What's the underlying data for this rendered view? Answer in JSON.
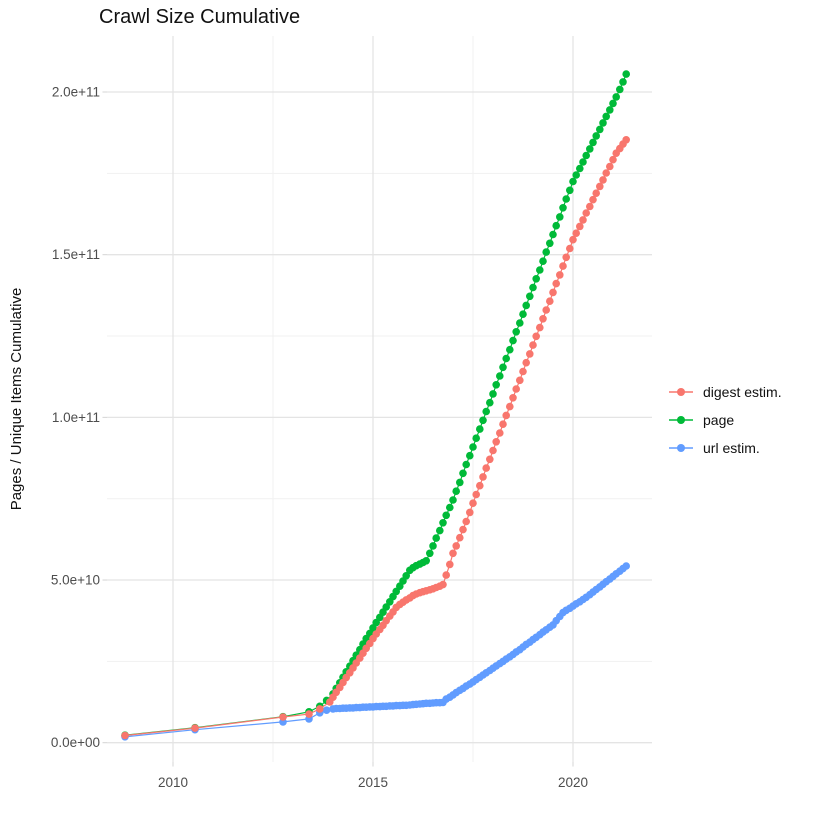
{
  "title": "Crawl Size Cumulative",
  "y_axis_title": "Pages / Unique Items Cumulative",
  "chart_data": {
    "type": "scatter",
    "title": "Crawl Size Cumulative",
    "xlabel": "",
    "ylabel": "Pages / Unique Items Cumulative",
    "legend_position": "right",
    "grid": "on",
    "values_unit": "billions (1e9)",
    "xlim": [
      2008.3,
      2022.0
    ],
    "ylim_billions": [
      0,
      217
    ],
    "x_ticks": [
      {
        "value": 2010,
        "label": "2010"
      },
      {
        "value": 2015,
        "label": "2015"
      },
      {
        "value": 2020,
        "label": "2020"
      }
    ],
    "x_minor_ticks": [
      2012.5,
      2017.5
    ],
    "y_ticks": [
      {
        "value": 0,
        "label": "0.0e+00"
      },
      {
        "value": 50,
        "label": "5.0e+10"
      },
      {
        "value": 100,
        "label": "1.0e+11"
      },
      {
        "value": 150,
        "label": "1.5e+11"
      },
      {
        "value": 200,
        "label": "2.0e+11"
      }
    ],
    "y_minor_ticks": [
      25,
      75,
      125,
      175
    ],
    "series": [
      {
        "name": "digest estim.",
        "key": "digest-estim",
        "color": "#F8766D",
        "points": [
          [
            2008.8,
            2.2
          ],
          [
            2010.55,
            4.5
          ],
          [
            2012.75,
            7.9
          ],
          [
            2013.4,
            8.8
          ],
          [
            2013.67,
            10.4
          ],
          [
            2013.92,
            12.5
          ],
          [
            2014.0,
            14.0
          ],
          [
            2014.08,
            15.5
          ],
          [
            2014.17,
            17.0
          ],
          [
            2014.25,
            18.5
          ],
          [
            2014.33,
            20.0
          ],
          [
            2014.42,
            21.5
          ],
          [
            2014.5,
            23.0
          ],
          [
            2014.58,
            24.5
          ],
          [
            2014.67,
            26.0
          ],
          [
            2014.75,
            27.5
          ],
          [
            2014.83,
            29.0
          ],
          [
            2014.92,
            30.5
          ],
          [
            2015.0,
            32.0
          ],
          [
            2015.08,
            33.4
          ],
          [
            2015.17,
            34.8
          ],
          [
            2015.25,
            36.1
          ],
          [
            2015.33,
            37.5
          ],
          [
            2015.42,
            38.9
          ],
          [
            2015.5,
            40.2
          ],
          [
            2015.58,
            41.6
          ],
          [
            2015.67,
            42.5
          ],
          [
            2015.75,
            43.2
          ],
          [
            2015.83,
            43.9
          ],
          [
            2015.92,
            44.5
          ],
          [
            2016.0,
            45.2
          ],
          [
            2016.08,
            45.7
          ],
          [
            2016.17,
            46.1
          ],
          [
            2016.25,
            46.4
          ],
          [
            2016.33,
            46.7
          ],
          [
            2016.42,
            47.0
          ],
          [
            2016.5,
            47.3
          ],
          [
            2016.58,
            47.7
          ],
          [
            2016.67,
            48.1
          ],
          [
            2016.75,
            48.6
          ],
          [
            2016.83,
            51.5
          ],
          [
            2016.92,
            54.8
          ],
          [
            2017.0,
            58.2
          ],
          [
            2017.08,
            60.5
          ],
          [
            2017.17,
            63.0
          ],
          [
            2017.25,
            65.5
          ],
          [
            2017.33,
            68.0
          ],
          [
            2017.42,
            70.8
          ],
          [
            2017.5,
            73.6
          ],
          [
            2017.58,
            76.3
          ],
          [
            2017.67,
            79.0
          ],
          [
            2017.75,
            81.7
          ],
          [
            2017.83,
            84.4
          ],
          [
            2017.92,
            87.1
          ],
          [
            2018.0,
            89.8
          ],
          [
            2018.08,
            92.5
          ],
          [
            2018.17,
            95.2
          ],
          [
            2018.25,
            97.9
          ],
          [
            2018.33,
            100.6
          ],
          [
            2018.42,
            103.3
          ],
          [
            2018.5,
            106.0
          ],
          [
            2018.58,
            108.7
          ],
          [
            2018.67,
            111.4
          ],
          [
            2018.75,
            114.1
          ],
          [
            2018.83,
            116.8
          ],
          [
            2018.92,
            119.5
          ],
          [
            2019.0,
            122.2
          ],
          [
            2019.08,
            124.9
          ],
          [
            2019.17,
            127.6
          ],
          [
            2019.25,
            130.3
          ],
          [
            2019.33,
            133.0
          ],
          [
            2019.42,
            135.7
          ],
          [
            2019.5,
            138.4
          ],
          [
            2019.58,
            141.1
          ],
          [
            2019.67,
            143.8
          ],
          [
            2019.75,
            146.5
          ],
          [
            2019.83,
            149.2
          ],
          [
            2019.92,
            151.9
          ],
          [
            2020.0,
            154.6
          ],
          [
            2020.08,
            156.6
          ],
          [
            2020.17,
            158.7
          ],
          [
            2020.25,
            160.7
          ],
          [
            2020.33,
            162.8
          ],
          [
            2020.42,
            164.8
          ],
          [
            2020.5,
            166.9
          ],
          [
            2020.58,
            168.9
          ],
          [
            2020.67,
            171.0
          ],
          [
            2020.75,
            173.0
          ],
          [
            2020.83,
            175.1
          ],
          [
            2020.92,
            177.1
          ],
          [
            2021.0,
            179.2
          ],
          [
            2021.08,
            181.2
          ],
          [
            2021.17,
            182.6
          ],
          [
            2021.25,
            184.0
          ],
          [
            2021.33,
            185.3
          ]
        ]
      },
      {
        "name": "page",
        "key": "page",
        "color": "#00BA38",
        "points": [
          [
            2008.8,
            2.3
          ],
          [
            2010.55,
            4.6
          ],
          [
            2012.75,
            8.0
          ],
          [
            2013.4,
            9.5
          ],
          [
            2013.67,
            11.2
          ],
          [
            2013.84,
            13.0
          ],
          [
            2014.0,
            15.0
          ],
          [
            2014.08,
            16.7
          ],
          [
            2014.17,
            18.4
          ],
          [
            2014.25,
            20.1
          ],
          [
            2014.33,
            21.8
          ],
          [
            2014.42,
            23.5
          ],
          [
            2014.5,
            25.2
          ],
          [
            2014.58,
            26.9
          ],
          [
            2014.67,
            28.6
          ],
          [
            2014.75,
            30.3
          ],
          [
            2014.83,
            32.0
          ],
          [
            2014.92,
            33.6
          ],
          [
            2015.0,
            35.3
          ],
          [
            2015.08,
            36.9
          ],
          [
            2015.17,
            38.5
          ],
          [
            2015.25,
            40.1
          ],
          [
            2015.33,
            41.7
          ],
          [
            2015.42,
            43.3
          ],
          [
            2015.5,
            44.9
          ],
          [
            2015.58,
            46.5
          ],
          [
            2015.67,
            48.1
          ],
          [
            2015.75,
            49.7
          ],
          [
            2015.83,
            51.3
          ],
          [
            2015.92,
            53.0
          ],
          [
            2016.0,
            53.8
          ],
          [
            2016.08,
            54.4
          ],
          [
            2016.17,
            54.9
          ],
          [
            2016.25,
            55.4
          ],
          [
            2016.33,
            55.9
          ],
          [
            2016.42,
            58.2
          ],
          [
            2016.5,
            60.5
          ],
          [
            2016.58,
            62.9
          ],
          [
            2016.67,
            65.2
          ],
          [
            2016.75,
            67.6
          ],
          [
            2016.83,
            69.9
          ],
          [
            2016.92,
            72.3
          ],
          [
            2017.0,
            74.6
          ],
          [
            2017.08,
            77.3
          ],
          [
            2017.17,
            80.0
          ],
          [
            2017.25,
            82.8
          ],
          [
            2017.33,
            85.5
          ],
          [
            2017.42,
            88.2
          ],
          [
            2017.5,
            90.9
          ],
          [
            2017.58,
            93.6
          ],
          [
            2017.67,
            96.4
          ],
          [
            2017.75,
            99.1
          ],
          [
            2017.83,
            101.8
          ],
          [
            2017.92,
            104.5
          ],
          [
            2018.0,
            107.2
          ],
          [
            2018.08,
            110.0
          ],
          [
            2018.17,
            112.7
          ],
          [
            2018.25,
            115.4
          ],
          [
            2018.33,
            118.1
          ],
          [
            2018.42,
            120.8
          ],
          [
            2018.5,
            123.6
          ],
          [
            2018.58,
            126.3
          ],
          [
            2018.67,
            129.0
          ],
          [
            2018.75,
            131.7
          ],
          [
            2018.83,
            134.4
          ],
          [
            2018.92,
            137.2
          ],
          [
            2019.0,
            139.9
          ],
          [
            2019.08,
            142.6
          ],
          [
            2019.17,
            145.3
          ],
          [
            2019.25,
            148.0
          ],
          [
            2019.33,
            150.8
          ],
          [
            2019.42,
            153.5
          ],
          [
            2019.5,
            156.2
          ],
          [
            2019.58,
            158.9
          ],
          [
            2019.67,
            161.6
          ],
          [
            2019.75,
            164.4
          ],
          [
            2019.83,
            167.1
          ],
          [
            2019.92,
            169.8
          ],
          [
            2020.0,
            172.5
          ],
          [
            2020.08,
            174.5
          ],
          [
            2020.17,
            176.5
          ],
          [
            2020.25,
            178.5
          ],
          [
            2020.33,
            180.5
          ],
          [
            2020.42,
            182.5
          ],
          [
            2020.5,
            184.5
          ],
          [
            2020.58,
            186.5
          ],
          [
            2020.67,
            188.5
          ],
          [
            2020.75,
            190.5
          ],
          [
            2020.83,
            192.5
          ],
          [
            2020.92,
            194.5
          ],
          [
            2021.0,
            196.5
          ],
          [
            2021.08,
            198.5
          ],
          [
            2021.17,
            200.8
          ],
          [
            2021.25,
            203.1
          ],
          [
            2021.33,
            205.5
          ]
        ]
      },
      {
        "name": "url estim.",
        "key": "url-estim",
        "color": "#619CFF",
        "points": [
          [
            2008.8,
            1.8
          ],
          [
            2010.55,
            4.0
          ],
          [
            2012.75,
            6.4
          ],
          [
            2013.4,
            7.3
          ],
          [
            2013.67,
            9.2
          ],
          [
            2013.84,
            10.0
          ],
          [
            2014.0,
            10.4
          ],
          [
            2014.08,
            10.5
          ],
          [
            2014.17,
            10.5
          ],
          [
            2014.25,
            10.6
          ],
          [
            2014.33,
            10.6
          ],
          [
            2014.42,
            10.7
          ],
          [
            2014.5,
            10.7
          ],
          [
            2014.58,
            10.8
          ],
          [
            2014.67,
            10.8
          ],
          [
            2014.75,
            10.9
          ],
          [
            2014.83,
            10.9
          ],
          [
            2014.92,
            11.0
          ],
          [
            2015.0,
            11.0
          ],
          [
            2015.08,
            11.1
          ],
          [
            2015.17,
            11.1
          ],
          [
            2015.25,
            11.2
          ],
          [
            2015.33,
            11.2
          ],
          [
            2015.42,
            11.3
          ],
          [
            2015.5,
            11.3
          ],
          [
            2015.58,
            11.4
          ],
          [
            2015.67,
            11.4
          ],
          [
            2015.75,
            11.5
          ],
          [
            2015.83,
            11.5
          ],
          [
            2015.92,
            11.6
          ],
          [
            2016.0,
            11.7
          ],
          [
            2016.08,
            11.8
          ],
          [
            2016.17,
            11.9
          ],
          [
            2016.25,
            12.0
          ],
          [
            2016.33,
            12.1
          ],
          [
            2016.42,
            12.1
          ],
          [
            2016.5,
            12.2
          ],
          [
            2016.58,
            12.3
          ],
          [
            2016.67,
            12.3
          ],
          [
            2016.75,
            12.4
          ],
          [
            2016.83,
            13.4
          ],
          [
            2016.92,
            14.0
          ],
          [
            2017.0,
            14.7
          ],
          [
            2017.08,
            15.4
          ],
          [
            2017.17,
            16.1
          ],
          [
            2017.25,
            16.7
          ],
          [
            2017.33,
            17.4
          ],
          [
            2017.42,
            18.0
          ],
          [
            2017.5,
            18.7
          ],
          [
            2017.58,
            19.4
          ],
          [
            2017.67,
            20.1
          ],
          [
            2017.75,
            20.8
          ],
          [
            2017.83,
            21.5
          ],
          [
            2017.92,
            22.2
          ],
          [
            2018.0,
            22.9
          ],
          [
            2018.08,
            23.6
          ],
          [
            2018.17,
            24.3
          ],
          [
            2018.25,
            25.0
          ],
          [
            2018.33,
            25.7
          ],
          [
            2018.42,
            26.4
          ],
          [
            2018.5,
            27.1
          ],
          [
            2018.58,
            27.9
          ],
          [
            2018.67,
            28.6
          ],
          [
            2018.75,
            29.4
          ],
          [
            2018.83,
            30.2
          ],
          [
            2018.92,
            30.9
          ],
          [
            2019.0,
            31.7
          ],
          [
            2019.08,
            32.4
          ],
          [
            2019.17,
            33.2
          ],
          [
            2019.25,
            34.0
          ],
          [
            2019.33,
            34.7
          ],
          [
            2019.42,
            35.5
          ],
          [
            2019.5,
            36.2
          ],
          [
            2019.58,
            37.5
          ],
          [
            2019.67,
            38.8
          ],
          [
            2019.75,
            40.0
          ],
          [
            2019.83,
            40.7
          ],
          [
            2019.92,
            41.3
          ],
          [
            2020.0,
            42.0
          ],
          [
            2020.08,
            42.7
          ],
          [
            2020.17,
            43.3
          ],
          [
            2020.25,
            44.0
          ],
          [
            2020.33,
            44.7
          ],
          [
            2020.42,
            45.5
          ],
          [
            2020.5,
            46.3
          ],
          [
            2020.58,
            47.1
          ],
          [
            2020.67,
            47.9
          ],
          [
            2020.75,
            48.7
          ],
          [
            2020.83,
            49.5
          ],
          [
            2020.92,
            50.3
          ],
          [
            2021.0,
            51.1
          ],
          [
            2021.08,
            51.9
          ],
          [
            2021.17,
            52.7
          ],
          [
            2021.25,
            53.5
          ],
          [
            2021.33,
            54.3
          ]
        ]
      }
    ]
  },
  "legend": {
    "items": [
      {
        "label": "digest estim."
      },
      {
        "label": "page"
      },
      {
        "label": "url estim."
      }
    ]
  }
}
